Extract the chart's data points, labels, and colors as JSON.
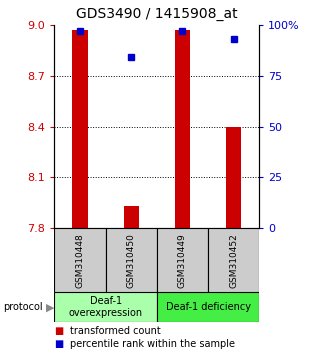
{
  "title": "GDS3490 / 1415908_at",
  "samples": [
    "GSM310448",
    "GSM310450",
    "GSM310449",
    "GSM310452"
  ],
  "bar_values": [
    8.97,
    7.93,
    8.97,
    8.4
  ],
  "percentile_values": [
    97,
    84,
    97,
    93
  ],
  "y_min": 7.8,
  "y_max": 9.0,
  "y_ticks": [
    7.8,
    8.1,
    8.4,
    8.7,
    9.0
  ],
  "y_right_ticks": [
    0,
    25,
    50,
    75,
    100
  ],
  "bar_color": "#cc0000",
  "percentile_color": "#0000cc",
  "groups": [
    {
      "label": "Deaf-1\noverexpression",
      "color": "#aaffaa"
    },
    {
      "label": "Deaf-1 deficiency",
      "color": "#44ee44"
    }
  ],
  "sample_box_color": "#cccccc",
  "legend_bar_label": "transformed count",
  "legend_pct_label": "percentile rank within the sample",
  "protocol_label": "protocol",
  "y_left_color": "#cc0000",
  "y_right_color": "#0000cc",
  "background_color": "#ffffff"
}
